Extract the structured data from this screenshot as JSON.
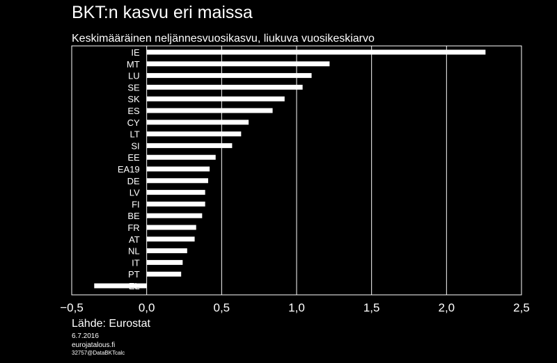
{
  "header": {
    "title": "BKT:n kasvu eri maissa",
    "subtitle": "Keskimääräinen neljännesvuosikasvu, liukuva vuosikeskiarvo"
  },
  "footer": {
    "source": "Lähde: Eurostat",
    "date": "6.7.2016",
    "site": "eurojatalous.fi",
    "code": "32757@DataBKTcalc"
  },
  "chart_data": {
    "type": "bar",
    "orientation": "horizontal",
    "categories": [
      "IE",
      "MT",
      "LU",
      "SE",
      "SK",
      "ES",
      "CY",
      "LT",
      "SI",
      "EE",
      "EA19",
      "DE",
      "LV",
      "FI",
      "BE",
      "FR",
      "AT",
      "NL",
      "IT",
      "PT",
      "EL"
    ],
    "values": [
      2.26,
      1.22,
      1.1,
      1.04,
      0.92,
      0.84,
      0.68,
      0.63,
      0.57,
      0.46,
      0.42,
      0.41,
      0.39,
      0.39,
      0.37,
      0.33,
      0.32,
      0.27,
      0.24,
      0.23,
      -0.35
    ],
    "xlim": [
      -0.5,
      2.5
    ],
    "xticks": [
      "−0,5",
      "0,0",
      "0,5",
      "1,0",
      "1,5",
      "2,0",
      "2,5"
    ],
    "xtick_values": [
      -0.5,
      0.0,
      0.5,
      1.0,
      1.5,
      2.0,
      2.5
    ],
    "grid": true,
    "colors": {
      "background": "#000000",
      "bar": "#ffffff",
      "grid": "#ffffff"
    }
  }
}
